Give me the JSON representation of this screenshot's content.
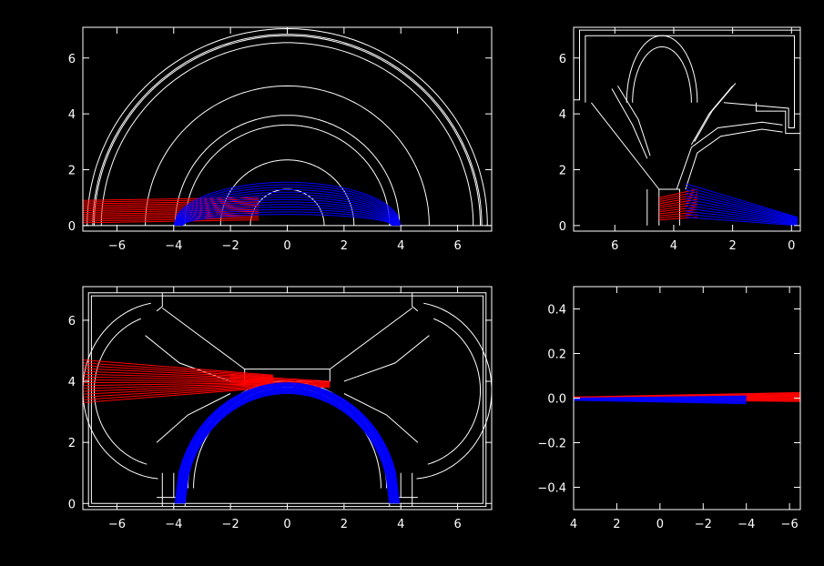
{
  "colors": {
    "background": "#000000",
    "axes": "#ffffff",
    "geometry": "#ffffff",
    "rays_red": "#ff0000",
    "rays_blue": "#0000ff"
  },
  "chart_data": [
    {
      "type": "line",
      "xlim": [
        -7.2,
        7.2
      ],
      "ylim": [
        -0.2,
        7.1
      ],
      "x_ticks": [
        -6,
        -4,
        -2,
        0,
        2,
        4,
        6
      ],
      "y_ticks": [
        0,
        2,
        4,
        6
      ],
      "x_tick_labels": [
        "−6",
        "−4",
        "−2",
        "0",
        "2",
        "4",
        "6"
      ],
      "y_tick_labels": [
        "0",
        "2",
        "4",
        "6"
      ],
      "geometry": {
        "arcs": [
          {
            "cx": 0,
            "cy": 0,
            "r": 7.05,
            "a0": 0,
            "a1": 180
          },
          {
            "cx": 0,
            "cy": 0,
            "r": 6.85,
            "a0": 0,
            "a1": 180
          },
          {
            "cx": 0,
            "cy": 0,
            "r": 6.8,
            "a0": 0,
            "a1": 180
          },
          {
            "cx": 0,
            "cy": 0,
            "r": 6.55,
            "a0": 0,
            "a1": 180
          },
          {
            "cx": 0,
            "cy": 0,
            "r": 5.0,
            "a0": 0,
            "a1": 180
          },
          {
            "cx": 0,
            "cy": 0,
            "r": 3.95,
            "a0": 0,
            "a1": 180
          },
          {
            "cx": 0,
            "cy": 0,
            "r": 3.6,
            "a0": 0,
            "a1": 180
          },
          {
            "cx": 0,
            "cy": 0,
            "r": 2.35,
            "a0": 0,
            "a1": 180
          },
          {
            "cx": 0,
            "cy": 0,
            "r": 1.3,
            "a0": 0,
            "a1": 180
          }
        ],
        "polylines": [
          [
            [
              -7.2,
              0
            ],
            [
              7.2,
              0
            ]
          ]
        ]
      },
      "rays": [
        {
          "color": "red",
          "count": 14,
          "x0": -7.2,
          "x1": -1.0,
          "y0": [
            0.1,
            0.9
          ],
          "y1": [
            0.2,
            1.0
          ]
        },
        {
          "color": "blue",
          "count": 14,
          "arc": true,
          "cx": 0,
          "r": [
            3.7,
            4.0
          ],
          "hmax": [
            0.4,
            1.55
          ],
          "x0": -4.0,
          "x1": 4.0
        }
      ]
    },
    {
      "type": "line",
      "xlim": [
        7.4,
        -0.3
      ],
      "ylim": [
        -0.2,
        7.1
      ],
      "x_ticks": [
        6,
        4,
        2,
        0
      ],
      "y_ticks": [
        0,
        2,
        4,
        6
      ],
      "x_tick_labels": [
        "6",
        "4",
        "2",
        "0"
      ],
      "y_tick_labels": [
        "0",
        "2",
        "4",
        "6"
      ],
      "geometry": {
        "polylines": [
          [
            [
              7.4,
              4.5
            ],
            [
              7.2,
              4.5
            ],
            [
              7.2,
              7.0
            ],
            [
              -0.3,
              7.0
            ],
            [
              -0.3,
              3.3
            ],
            [
              0.2,
              3.3
            ],
            [
              0.2,
              4.1
            ],
            [
              1.2,
              4.1
            ],
            [
              1.2,
              4.4
            ]
          ],
          [
            [
              7.0,
              4.4
            ],
            [
              7.0,
              6.8
            ],
            [
              -0.1,
              6.8
            ],
            [
              -0.1,
              3.5
            ],
            [
              0.1,
              3.5
            ],
            [
              0.1,
              4.2
            ],
            [
              2.3,
              4.4
            ]
          ],
          [
            [
              6.8,
              4.4
            ],
            [
              4.5,
              1.3
            ],
            [
              4.5,
              0.0
            ]
          ],
          [
            [
              4.5,
              1.3
            ],
            [
              3.8,
              1.3
            ],
            [
              3.8,
              0.0
            ]
          ],
          [
            [
              4.9,
              1.3
            ],
            [
              4.9,
              0.0
            ]
          ],
          [
            [
              3.6,
              1.3
            ],
            [
              3.2,
              2.6
            ],
            [
              2.4,
              3.2
            ],
            [
              1.0,
              3.45
            ],
            [
              0.3,
              3.35
            ]
          ],
          [
            [
              3.9,
              1.3
            ],
            [
              3.4,
              2.8
            ],
            [
              2.5,
              3.5
            ],
            [
              1.0,
              3.7
            ],
            [
              0.3,
              3.6
            ]
          ]
        ],
        "arcs": [
          {
            "cx": 4.4,
            "cy": 4.4,
            "r": 2.4,
            "a0": 0,
            "a1": 180,
            "cxr": true
          },
          {
            "cx": 4.4,
            "cy": 4.4,
            "r": 2.0,
            "a0": 0,
            "a1": 180,
            "cxr": true
          }
        ],
        "strokes": [
          [
            [
              6.1,
              4.9
            ],
            [
              5.4,
              3.6
            ],
            [
              4.9,
              2.4
            ]
          ],
          [
            [
              5.9,
              5.0
            ],
            [
              5.2,
              3.8
            ],
            [
              4.8,
              2.5
            ]
          ],
          [
            [
              2.0,
              5.0
            ],
            [
              2.8,
              4.0
            ],
            [
              3.4,
              2.9
            ]
          ],
          [
            [
              1.9,
              5.1
            ],
            [
              2.7,
              4.1
            ],
            [
              3.3,
              3.0
            ]
          ]
        ]
      },
      "rays": [
        {
          "color": "red",
          "count": 12,
          "x0": 4.5,
          "x1": 3.2,
          "y0": [
            0.2,
            1.0
          ],
          "y1": [
            0.3,
            1.3
          ]
        },
        {
          "color": "blue",
          "count": 12,
          "x0": 3.6,
          "x1": -0.2,
          "y0": [
            0.3,
            1.5
          ],
          "y1": [
            0.0,
            0.3
          ]
        }
      ]
    },
    {
      "type": "line",
      "xlim": [
        -7.2,
        7.2
      ],
      "ylim": [
        -0.2,
        7.1
      ],
      "x_ticks": [
        -6,
        -4,
        -2,
        0,
        2,
        4,
        6
      ],
      "y_ticks": [
        0,
        2,
        4,
        6
      ],
      "x_tick_labels": [
        "−6",
        "−4",
        "−2",
        "0",
        "2",
        "4",
        "6"
      ],
      "y_tick_labels": [
        "0",
        "2",
        "4",
        "6"
      ],
      "geometry": {
        "polylines": [
          [
            [
              -7.0,
              -0.1
            ],
            [
              -7.0,
              6.9
            ],
            [
              7.0,
              6.9
            ],
            [
              7.0,
              -0.1
            ],
            [
              -7.0,
              -0.1
            ]
          ],
          [
            [
              -6.9,
              0.0
            ],
            [
              -6.9,
              6.8
            ],
            [
              6.9,
              6.8
            ],
            [
              6.9,
              0.0
            ],
            [
              -6.9,
              0.0
            ]
          ],
          [
            [
              -4.4,
              6.9
            ],
            [
              -4.4,
              6.45
            ],
            [
              -4.6,
              6.3
            ]
          ],
          [
            [
              4.4,
              6.9
            ],
            [
              4.4,
              6.45
            ],
            [
              4.6,
              6.3
            ]
          ],
          [
            [
              -4.4,
              6.4
            ],
            [
              -1.5,
              4.4
            ],
            [
              1.5,
              4.4
            ],
            [
              4.4,
              6.4
            ]
          ],
          [
            [
              -1.5,
              4.4
            ],
            [
              -1.5,
              4.0
            ],
            [
              1.5,
              4.0
            ],
            [
              1.5,
              4.4
            ]
          ],
          [
            [
              -4.4,
              1.0
            ],
            [
              -4.4,
              -0.1
            ]
          ],
          [
            [
              -4.0,
              1.0
            ],
            [
              -4.0,
              0.2
            ]
          ],
          [
            [
              4.0,
              1.0
            ],
            [
              4.0,
              0.2
            ]
          ],
          [
            [
              4.4,
              1.0
            ],
            [
              4.4,
              -0.1
            ]
          ],
          [
            [
              -4.6,
              0.2
            ],
            [
              -3.6,
              0.2
            ],
            [
              -3.6,
              -0.1
            ]
          ],
          [
            [
              3.6,
              -0.1
            ],
            [
              3.6,
              0.2
            ],
            [
              4.6,
              0.2
            ]
          ]
        ],
        "arcs": [
          {
            "cx": 0,
            "cy": 0.5,
            "r": 3.5,
            "a0": 0,
            "a1": 180
          },
          {
            "cx": 0,
            "cy": 0.5,
            "r": 3.3,
            "a0": 0,
            "a1": 180
          },
          {
            "cx": -4.3,
            "cy": 3.7,
            "r": 2.9,
            "a0": 100,
            "a1": 265
          },
          {
            "cx": -4.3,
            "cy": 3.7,
            "r": 2.5,
            "a0": 110,
            "a1": 255
          },
          {
            "cx": 4.3,
            "cy": 3.7,
            "r": 2.9,
            "a0": -85,
            "a1": 80
          },
          {
            "cx": 4.3,
            "cy": 3.7,
            "r": 2.5,
            "a0": -75,
            "a1": 70
          }
        ],
        "strokes": [
          [
            [
              -5.0,
              5.5
            ],
            [
              -3.8,
              4.6
            ],
            [
              -2.0,
              4.0
            ]
          ],
          [
            [
              -2.0,
              3.6
            ],
            [
              -3.5,
              2.9
            ],
            [
              -4.6,
              2.0
            ]
          ],
          [
            [
              5.0,
              5.5
            ],
            [
              3.8,
              4.6
            ],
            [
              2.0,
              4.0
            ]
          ],
          [
            [
              2.0,
              3.6
            ],
            [
              3.5,
              2.9
            ],
            [
              4.6,
              2.0
            ]
          ]
        ]
      },
      "rays": [
        {
          "color": "red",
          "count": 16,
          "x0": -7.2,
          "x1": -0.5,
          "y0": [
            3.3,
            4.7
          ],
          "y1": [
            3.8,
            4.2
          ]
        },
        {
          "color": "red",
          "count": 8,
          "x0": -2.0,
          "x1": 1.5,
          "y0": [
            3.9,
            4.2
          ],
          "y1": [
            3.8,
            4.0
          ]
        },
        {
          "color": "blue",
          "count": 14,
          "arc": true,
          "cx": 0,
          "r": [
            3.6,
            3.95
          ],
          "hmax": [
            3.6,
            3.95
          ],
          "x0": -4.0,
          "x1": 4.0,
          "base": 0.0
        }
      ]
    },
    {
      "type": "line",
      "xlim": [
        4.0,
        -6.5
      ],
      "ylim": [
        -0.5,
        0.5
      ],
      "x_ticks": [
        4,
        2,
        0,
        -2,
        -4,
        -6
      ],
      "y_ticks": [
        -0.4,
        -0.2,
        0.0,
        0.2,
        0.4
      ],
      "x_tick_labels": [
        "4",
        "2",
        "0",
        "−2",
        "−4",
        "−6"
      ],
      "y_tick_labels": [
        "−0.4",
        "−0.2",
        "0.0",
        "0.2",
        "0.4"
      ],
      "geometry": {},
      "rays": [
        {
          "color": "red",
          "count": 12,
          "x0": 4.0,
          "x1": -6.5,
          "y0": [
            -0.005,
            0.005
          ],
          "y1": [
            -0.015,
            0.025
          ]
        },
        {
          "color": "blue",
          "count": 10,
          "x0": 4.0,
          "x1": -4.0,
          "y0": [
            -0.01,
            0.0
          ],
          "y1": [
            -0.025,
            0.01
          ]
        }
      ]
    }
  ]
}
